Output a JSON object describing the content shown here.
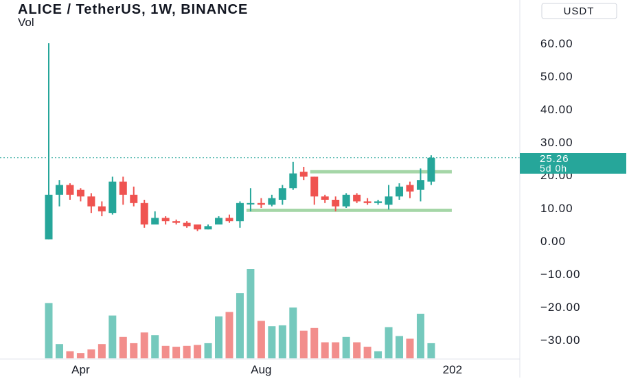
{
  "header": {
    "title": "ALICE / TetherUS, 1W, BINANCE",
    "subtitle": "Vol"
  },
  "currency_badge": "USDT",
  "price_label": {
    "price": "25.26",
    "countdown": "5d 0h"
  },
  "colors": {
    "up": "#26a69a",
    "down": "#ef5350",
    "vol_up": "#75c9bd",
    "vol_down": "#f28e8c",
    "zone": "#a5d6a7",
    "dotted": "#26a69a",
    "axis_text": "#131722",
    "grid_border": "#e0e3eb"
  },
  "chart_data": {
    "type": "candlestick",
    "title": "ALICE / TetherUS, 1W, BINANCE",
    "y_axis": {
      "ticks": [
        60,
        50,
        40,
        30,
        20,
        10,
        0,
        -10,
        -20,
        -30
      ],
      "tick_labels": [
        "60.00",
        "50.00",
        "40.00",
        "30.00",
        "20.00",
        "10.00",
        "0.00",
        "−10.00",
        "−20.00",
        "−30.00"
      ],
      "range": [
        -36,
        66
      ]
    },
    "x_axis": {
      "labels": [
        {
          "text": "Apr",
          "bar_index": 3
        },
        {
          "text": "Aug",
          "bar_index": 20
        },
        {
          "text": "202",
          "bar_index": 38
        }
      ]
    },
    "last_price": 25.26,
    "zones": [
      {
        "top": 21.5,
        "bottom": 20.5,
        "from_bar": 25,
        "to_bar": 36
      },
      {
        "top": 9.8,
        "bottom": 8.8,
        "from_bar": 19,
        "to_bar": 36
      }
    ],
    "candles": [
      {
        "o": 0.5,
        "h": 60,
        "l": 0.5,
        "c": 14
      },
      {
        "o": 14,
        "h": 18.5,
        "l": 10.5,
        "c": 17
      },
      {
        "o": 17,
        "h": 17.5,
        "l": 12.5,
        "c": 14
      },
      {
        "o": 15.5,
        "h": 16,
        "l": 12,
        "c": 13.5
      },
      {
        "o": 13.5,
        "h": 14.5,
        "l": 8.5,
        "c": 10.5
      },
      {
        "o": 10.5,
        "h": 12,
        "l": 7.5,
        "c": 9
      },
      {
        "o": 8.5,
        "h": 19.5,
        "l": 8,
        "c": 18
      },
      {
        "o": 18,
        "h": 19.5,
        "l": 11,
        "c": 14
      },
      {
        "o": 14,
        "h": 16.5,
        "l": 10.5,
        "c": 11.5
      },
      {
        "o": 11.5,
        "h": 12.5,
        "l": 4,
        "c": 5
      },
      {
        "o": 5,
        "h": 9,
        "l": 5,
        "c": 7
      },
      {
        "o": 7,
        "h": 7.5,
        "l": 5,
        "c": 6
      },
      {
        "o": 6,
        "h": 6.5,
        "l": 5,
        "c": 5.5
      },
      {
        "o": 5.5,
        "h": 6,
        "l": 4,
        "c": 4.5
      },
      {
        "o": 5,
        "h": 5,
        "l": 3,
        "c": 3.5
      },
      {
        "o": 3.5,
        "h": 5,
        "l": 3.5,
        "c": 4.5
      },
      {
        "o": 5,
        "h": 7.5,
        "l": 5,
        "c": 7
      },
      {
        "o": 7,
        "h": 8,
        "l": 5.5,
        "c": 6
      },
      {
        "o": 6,
        "h": 12,
        "l": 4,
        "c": 11.5
      },
      {
        "o": 11.5,
        "h": 16,
        "l": 9,
        "c": 11.5
      },
      {
        "o": 11.5,
        "h": 13,
        "l": 10,
        "c": 11
      },
      {
        "o": 11,
        "h": 14,
        "l": 10.5,
        "c": 13
      },
      {
        "o": 12.5,
        "h": 17,
        "l": 11,
        "c": 16
      },
      {
        "o": 16,
        "h": 24,
        "l": 15.5,
        "c": 20.5
      },
      {
        "o": 21,
        "h": 22.5,
        "l": 18.5,
        "c": 19.5
      },
      {
        "o": 19.5,
        "h": 19.5,
        "l": 11,
        "c": 13.5
      },
      {
        "o": 13.5,
        "h": 14,
        "l": 11.5,
        "c": 12.5
      },
      {
        "o": 12.5,
        "h": 13.5,
        "l": 9,
        "c": 10.5
      },
      {
        "o": 10.5,
        "h": 14.5,
        "l": 10,
        "c": 14
      },
      {
        "o": 14,
        "h": 14.5,
        "l": 11.5,
        "c": 12
      },
      {
        "o": 12,
        "h": 13,
        "l": 11,
        "c": 11.5
      },
      {
        "o": 11.5,
        "h": 12.5,
        "l": 11,
        "c": 12
      },
      {
        "o": 11,
        "h": 17,
        "l": 9.5,
        "c": 13.5
      },
      {
        "o": 13.5,
        "h": 17.5,
        "l": 12.5,
        "c": 16.5
      },
      {
        "o": 17,
        "h": 18,
        "l": 13,
        "c": 15
      },
      {
        "o": 15.5,
        "h": 22,
        "l": 12,
        "c": 18.5
      },
      {
        "o": 18,
        "h": 26,
        "l": 17,
        "c": 25.26
      }
    ],
    "volume_max": 100,
    "volumes": [
      62,
      16,
      8,
      6,
      10,
      16,
      48,
      24,
      17,
      29,
      26,
      14,
      13,
      14,
      15,
      17,
      47,
      52,
      73,
      100,
      42,
      36,
      37,
      57,
      31,
      34,
      18,
      18,
      24,
      18,
      13,
      8,
      35,
      25,
      22,
      50,
      17
    ]
  }
}
